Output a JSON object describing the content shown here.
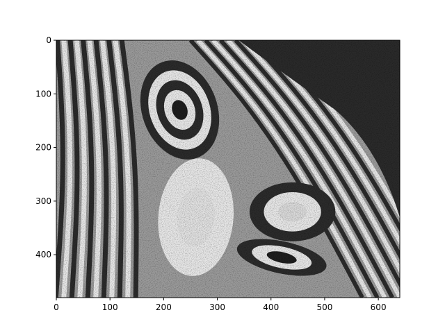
{
  "chart_data": {
    "type": "heatmap",
    "title": "",
    "xlabel": "",
    "ylabel": "",
    "colormap": "gray",
    "image_size": [
      640,
      480
    ],
    "xlim": [
      0,
      640
    ],
    "ylim": [
      480,
      0
    ],
    "y_axis_inverted": true,
    "grid": false,
    "x_ticks": [
      0,
      100,
      200,
      300,
      400,
      500,
      600
    ],
    "x_tick_labels": [
      "0",
      "100",
      "200",
      "300",
      "400",
      "500",
      "600"
    ],
    "y_ticks": [
      0,
      100,
      200,
      300,
      400
    ],
    "y_tick_labels": [
      "0",
      "100",
      "200",
      "300",
      "400"
    ],
    "colors": {
      "background": "#ffffff",
      "axes": "#000000",
      "dark": "#2b2b2b",
      "light": "#e6e6e6"
    },
    "description_of_pattern": "Interference fringe pattern: dense vertical fringes on the left, a closed elliptical dark/light lobe centered near (230, 130), a dark lobe near (420, 400), a light lobe near (440, 320), and a dark speckled region in the upper right."
  }
}
